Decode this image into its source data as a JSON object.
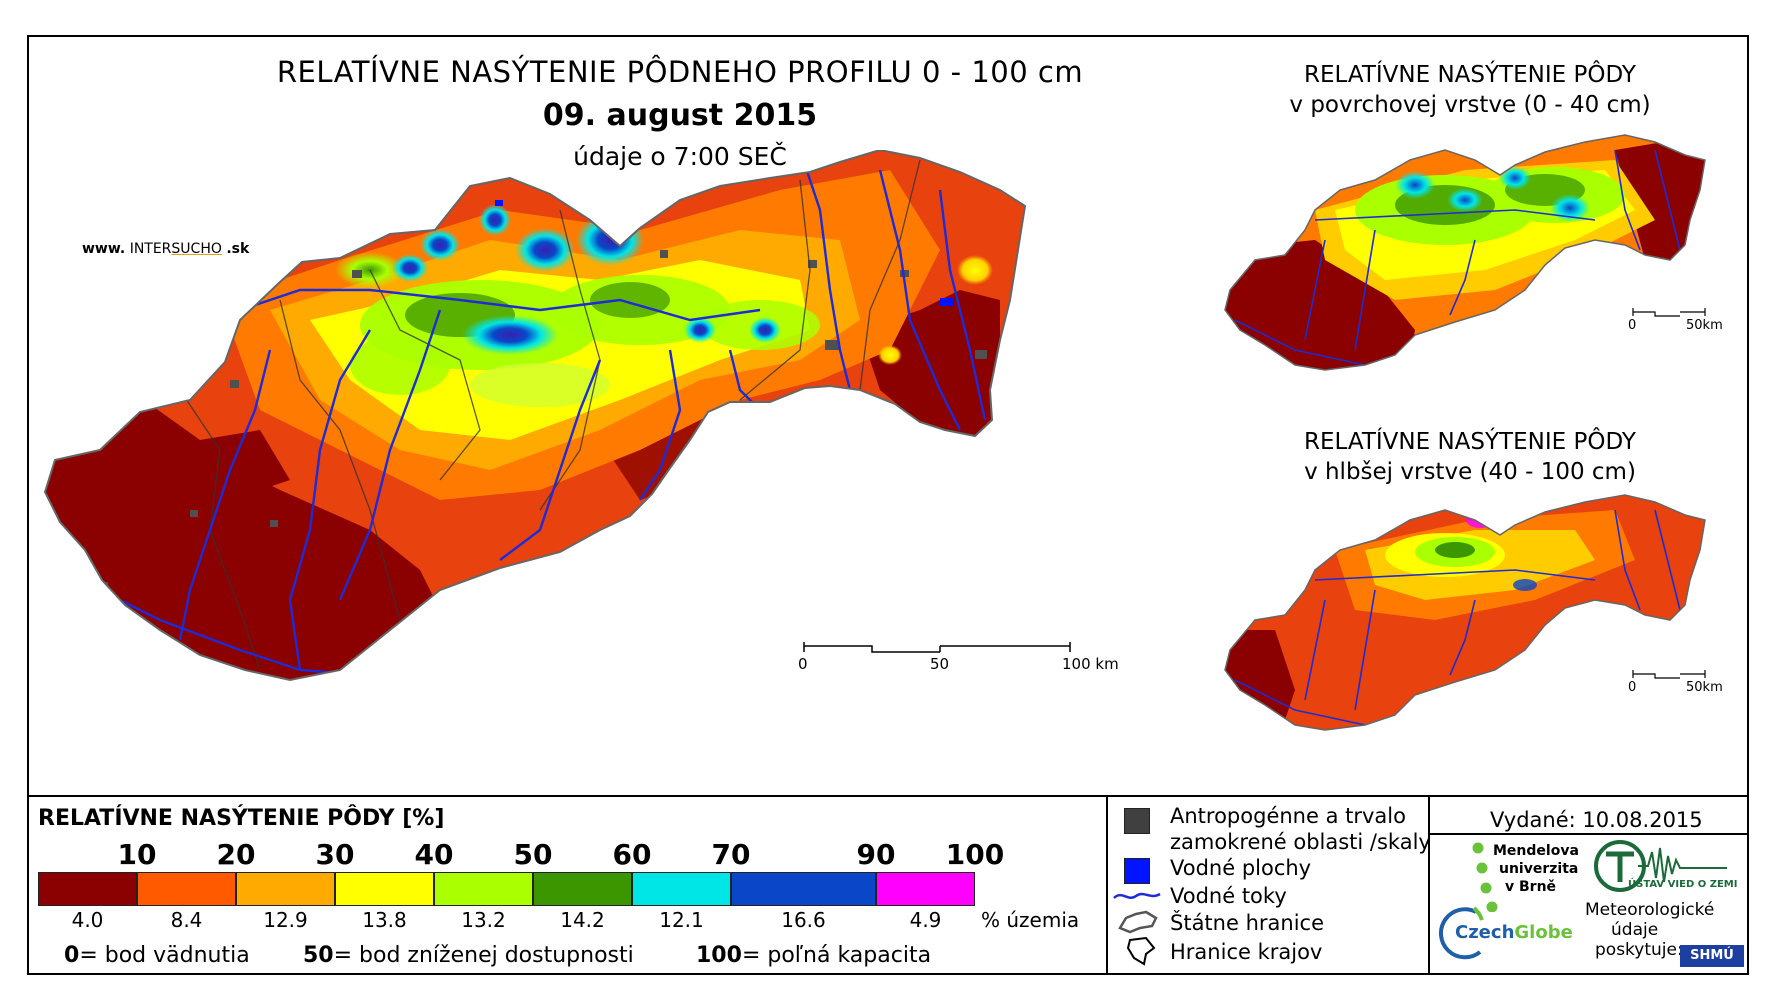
{
  "header": {
    "title": "RELATÍVNE NASÝTENIE PÔDNEHO PROFILU 0 - 100 cm",
    "date": "09. august 2015",
    "time": "údaje o 7:00 SEČ"
  },
  "website": {
    "prefix": "www.",
    "brand_plain": "INTER",
    "brand_accent": "SUCHO",
    "suffix": ".sk"
  },
  "main_map": {
    "scale": {
      "labels": [
        "0",
        "50",
        "100 km"
      ]
    }
  },
  "inset_top": {
    "title_line1": "RELATÍVNE NASÝTENIE PÔDY",
    "title_line2": "v povrchovej vrstve (0 - 40 cm)",
    "scale": {
      "labels": [
        "0",
        "50km"
      ]
    }
  },
  "inset_bottom": {
    "title_line1": "RELATÍVNE NASÝTENIE PÔDY",
    "title_line2": "v hlbšej vrstve (40 - 100 cm)",
    "scale": {
      "labels": [
        "0",
        "50km"
      ]
    }
  },
  "legend": {
    "title": "RELATÍVNE NASÝTENIE PÔDY [%]",
    "thresholds": [
      "10",
      "20",
      "30",
      "40",
      "50",
      "60",
      "70",
      "90",
      "100"
    ],
    "classes": [
      {
        "color": "#8b0000",
        "share": "4.0"
      },
      {
        "color": "#ff5a00",
        "share": "8.4"
      },
      {
        "color": "#ffaa00",
        "share": "12.9"
      },
      {
        "color": "#ffff00",
        "share": "13.8"
      },
      {
        "color": "#aaff00",
        "share": "13.2"
      },
      {
        "color": "#3c9600",
        "share": "14.2"
      },
      {
        "color": "#00e6e6",
        "share": "12.1"
      },
      {
        "color": "#0a46c8",
        "share": "16.6"
      },
      {
        "color": "#ff00ff",
        "share": "4.9"
      }
    ],
    "share_unit": "% územia",
    "notes": [
      {
        "value": "0",
        "text": "= bod vädnutia"
      },
      {
        "value": "50",
        "text": "= bod zníženej dostupnosti"
      },
      {
        "value": "100",
        "text": "= poľná kapacita"
      }
    ]
  },
  "symbols": {
    "items": [
      {
        "icon": "gray-square-icon",
        "label_line1": "Antropogénne a trvalo",
        "label_line2": "zamokrené oblasti /skaly"
      },
      {
        "icon": "blue-square-icon",
        "label_line1": "Vodné plochy"
      },
      {
        "icon": "river-line-icon",
        "label_line1": "Vodné toky"
      },
      {
        "icon": "state-border-icon",
        "label_line1": "Štátne hranice"
      },
      {
        "icon": "region-border-icon",
        "label_line1": "Hranice krajov"
      }
    ]
  },
  "credits": {
    "issued": "Vydané: 10.08.2015",
    "mendel": [
      "Mendelova",
      "univerzita",
      "v Brně"
    ],
    "ustav": "ÚSTAV VIED O ZEMI",
    "czechglobe_a": "Czech",
    "czechglobe_b": "Globe",
    "meteo": [
      "Meteorologické",
      "údaje",
      "poskytuje:"
    ],
    "shmu": "SHMÚ"
  },
  "colors": {
    "dark_red": "#8b0000",
    "red_orange": "#e8420e",
    "orange": "#ff7a00",
    "amber": "#ffaa00",
    "yellow": "#ffff00",
    "lime": "#aaff00",
    "green": "#3c9600",
    "cyan": "#00e6e6",
    "blue": "#0a46c8",
    "magenta": "#ff00ff",
    "river": "#1e2bd6",
    "urban": "#505050"
  }
}
